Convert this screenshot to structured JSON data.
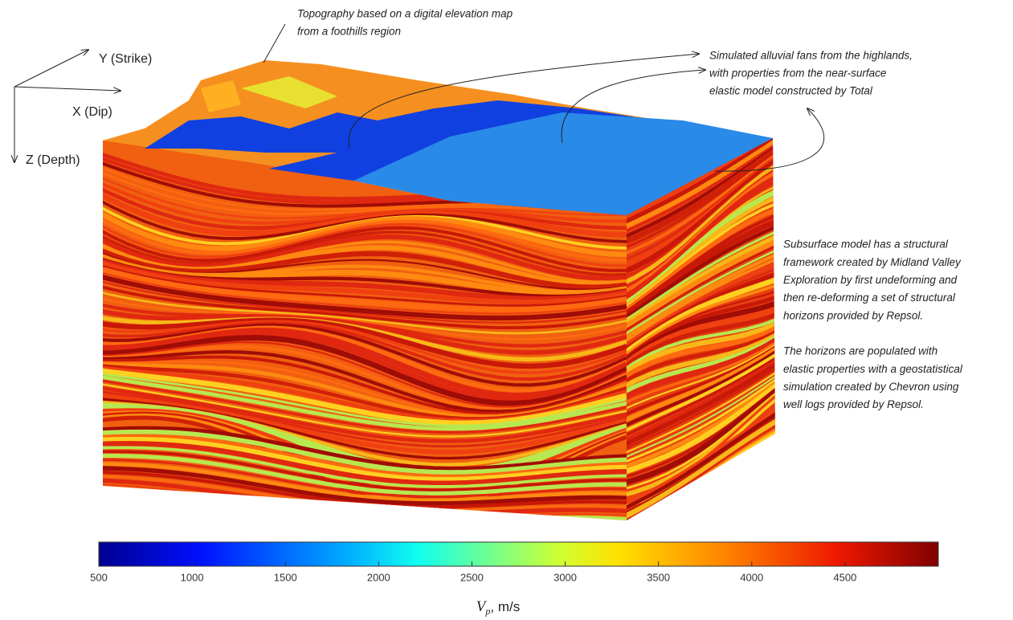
{
  "axes_labels": {
    "y": "Y (Strike)",
    "x": "X (Dip)",
    "z": "Z (Depth)"
  },
  "annotations": {
    "topography": [
      "Topography based on a digital elevation map",
      "from a foothills region"
    ],
    "alluvial": [
      "Simulated alluvial fans from the highlands,",
      "with properties from the near-surface",
      "elastic model constructed by Total"
    ],
    "subsurface": [
      "Subsurface model has a structural",
      "framework created by Midland Valley",
      "Exploration by first undeforming and",
      "then re-deforming a set of structural",
      "horizons provided by Repsol."
    ],
    "horizons": [
      "The horizons are populated with",
      "elastic properties with a geostatistical",
      "simulation created by Chevron using",
      "well logs provided by Repsol."
    ]
  },
  "colorbar": {
    "symbol": "V",
    "subscript": "p",
    "unit": ", m/s",
    "lim": [
      500,
      5000
    ],
    "ticks": [
      500,
      1000,
      1500,
      2000,
      2500,
      3000,
      3500,
      4000,
      4500
    ]
  }
}
